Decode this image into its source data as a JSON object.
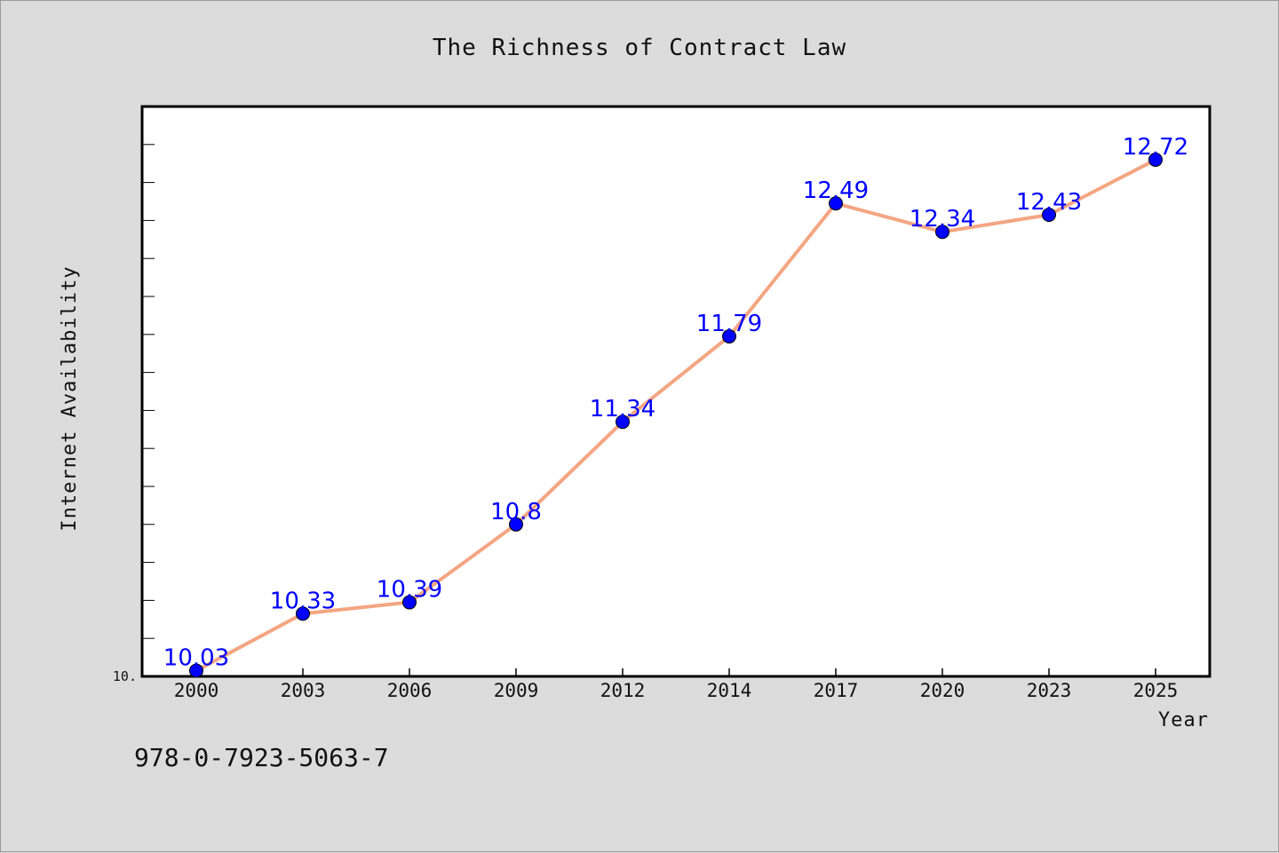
{
  "chart_data": {
    "type": "line",
    "title": "The Richness of Contract Law",
    "xlabel": "Year",
    "ylabel": "Internet Availability",
    "categories": [
      "2000",
      "2003",
      "2006",
      "2009",
      "2012",
      "2014",
      "2017",
      "2020",
      "2023",
      "2025"
    ],
    "series": [
      {
        "values": [
          10.03,
          10.33,
          10.39,
          10.8,
          11.34,
          11.79,
          12.49,
          12.34,
          12.43,
          12.72
        ],
        "labels": [
          "10.03",
          "10.33",
          "10.39",
          "10.8",
          "11.34",
          "11.79",
          "12.49",
          "12.34",
          "12.43",
          "12.72"
        ],
        "line_color": "#f4a582",
        "marker_color": "#0000ff"
      }
    ],
    "ylim": [
      10.0,
      13.0
    ],
    "y_tick_label": "10.",
    "grid": false,
    "label_color": "#0000ff"
  },
  "footer": {
    "isbn": "978-0-7923-5063-7"
  }
}
